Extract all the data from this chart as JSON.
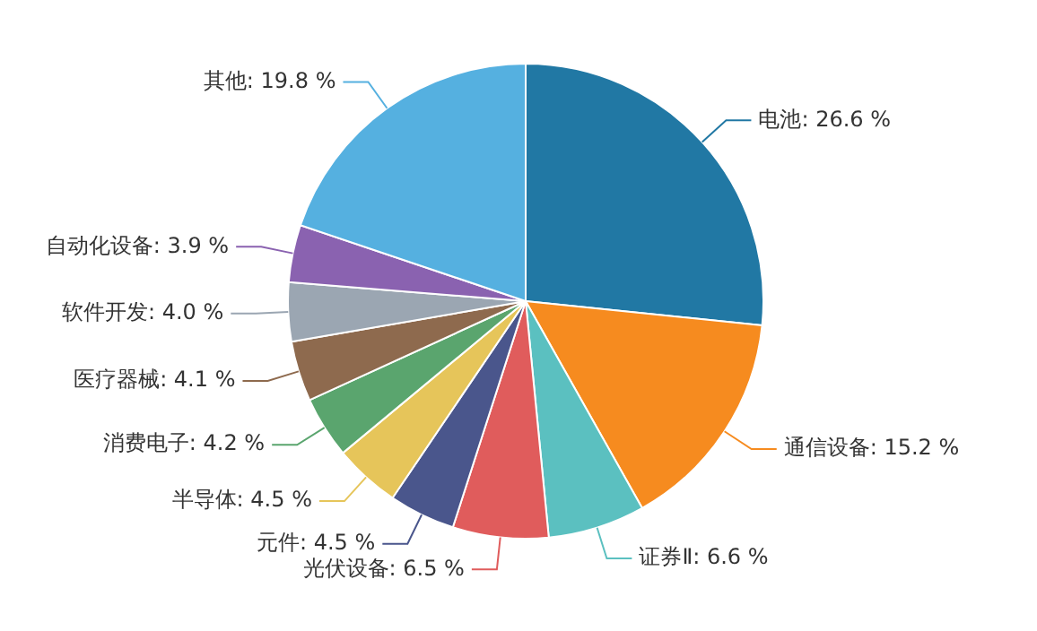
{
  "chart_data": {
    "type": "pie",
    "categories": [
      "电池",
      "通信设备",
      "证券Ⅱ",
      "光伏设备",
      "元件",
      "半导体",
      "消费电子",
      "医疗器械",
      "软件开发",
      "自动化设备",
      "其他"
    ],
    "values": [
      26.6,
      15.2,
      6.6,
      6.5,
      4.5,
      4.5,
      4.2,
      4.1,
      4.0,
      3.9,
      19.8
    ],
    "value_labels": [
      "26.6 %",
      "15.2 %",
      "6.6 %",
      "6.5 %",
      "4.5 %",
      "4.5 %",
      "4.2 %",
      "4.1 %",
      "4.0 %",
      "3.9 %",
      "19.8 %"
    ],
    "colors": [
      "#2178a4",
      "#f68b1f",
      "#5bc0c0",
      "#e05c5c",
      "#4a568c",
      "#e6c55a",
      "#5aa56e",
      "#8e6a4e",
      "#9ba6b2",
      "#8a62b0",
      "#55b0e0"
    ],
    "legend": false
  }
}
